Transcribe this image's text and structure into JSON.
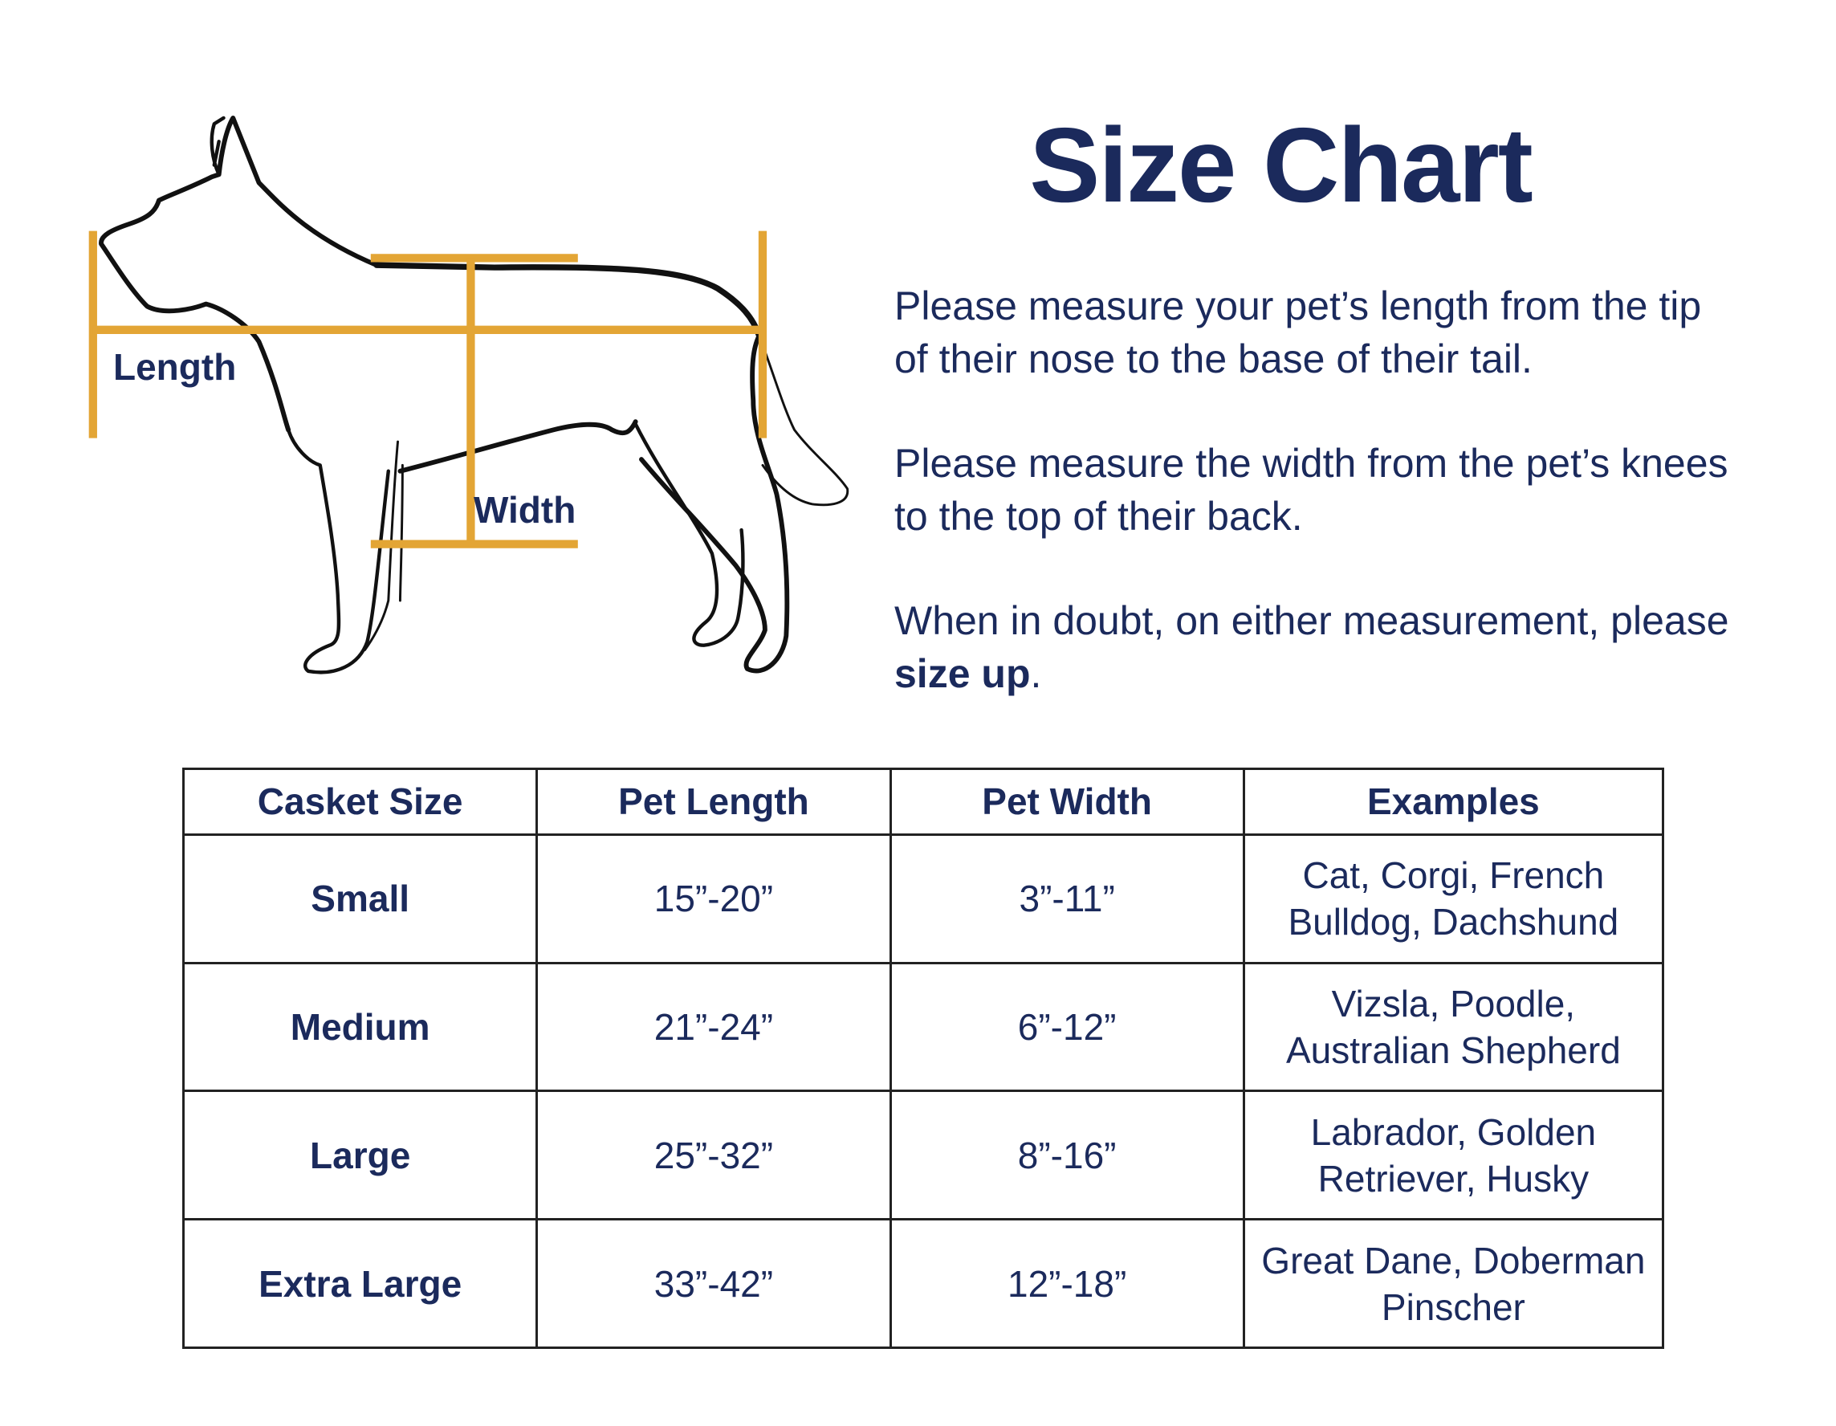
{
  "title": "Size Chart",
  "diagram": {
    "length_label": "Length",
    "width_label": "Width",
    "measure_color": "#e3a535",
    "outline_color": "#111111"
  },
  "instructions": {
    "p1": "Please measure your pet’s length from the tip of their nose to the base of their tail.",
    "p2": "Please measure the width from the pet’s knees to the top of their back.",
    "p3_prefix": "When in doubt, on either measurement, please ",
    "p3_bold": "size up",
    "p3_suffix": "."
  },
  "table": {
    "headers": [
      "Casket Size",
      "Pet Length",
      "Pet Width",
      "Examples"
    ],
    "rows": [
      [
        "Small",
        "15”-20”",
        "3”-11”",
        "Cat, Corgi, French Bulldog, Dachshund"
      ],
      [
        "Medium",
        "21”-24”",
        "6”-12”",
        "Vizsla, Poodle, Australian Shepherd"
      ],
      [
        "Large",
        "25”-32”",
        "8”-16”",
        "Labrador,  Golden Retriever, Husky"
      ],
      [
        "Extra Large",
        "33”-42”",
        "12”-18”",
        "Great Dane, Doberman Pinscher"
      ]
    ]
  },
  "colors": {
    "text": "#1b2a5c",
    "accent": "#e3a535"
  }
}
